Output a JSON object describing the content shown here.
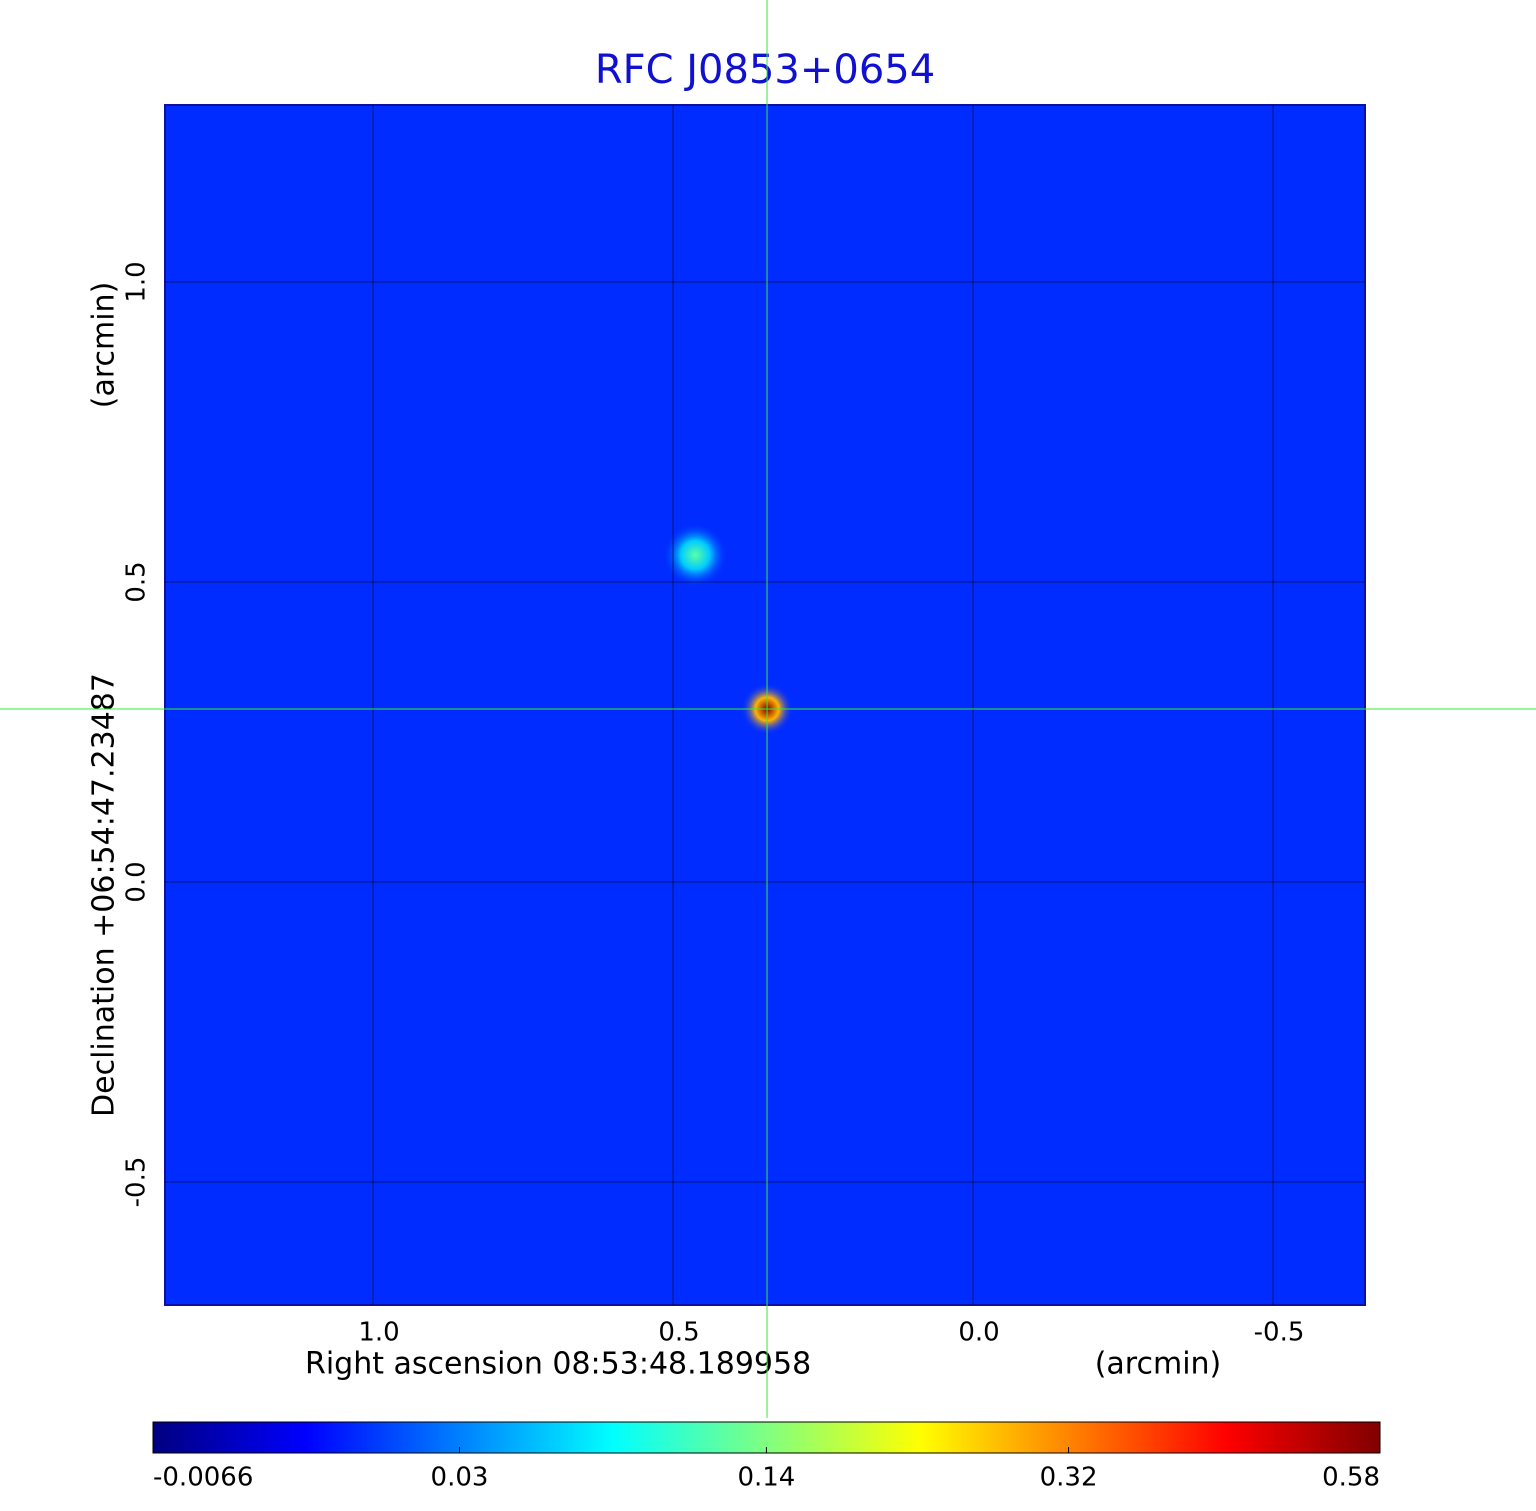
{
  "chart_data": {
    "type": "image",
    "title": "RFC J0853+0654",
    "xlabel": "Right ascension  08:53:48.189958",
    "xunit": "(arcmin)",
    "ylabel": "Declination  +06:54:47.23487",
    "yunit": "(arcmin)",
    "xlim": [
      1.3467,
      -0.6533
    ],
    "ylim": [
      -0.705,
      1.295
    ],
    "xticks": [
      {
        "value": 1,
        "label": "1.0"
      },
      0.5,
      {
        "value": 0,
        "label": "0.0"
      },
      -0.5
    ],
    "yticks": [
      {
        "value": -0.5,
        "label": "-0.5"
      },
      {
        "value": 0,
        "label": "0.0"
      },
      0.5,
      {
        "value": 1,
        "label": "1.0"
      }
    ],
    "grid": true,
    "colormap": "jet",
    "colorbar_scale": "sqrt",
    "colorbar_lim": [
      -0.0066,
      0.58
    ],
    "colorbar_ticks": [
      -0.0066,
      0.03,
      0.14,
      0.32,
      0.58
    ],
    "background_value": 0.01,
    "crosshair": {
      "x": 0.3433,
      "y": 0.2883,
      "color": "#33ee33"
    },
    "sources": [
      {
        "x": 0.3433,
        "y": 0.2883,
        "value": 0.58
      },
      {
        "x": 0.463,
        "y": 0.545,
        "value": 0.12
      }
    ]
  }
}
